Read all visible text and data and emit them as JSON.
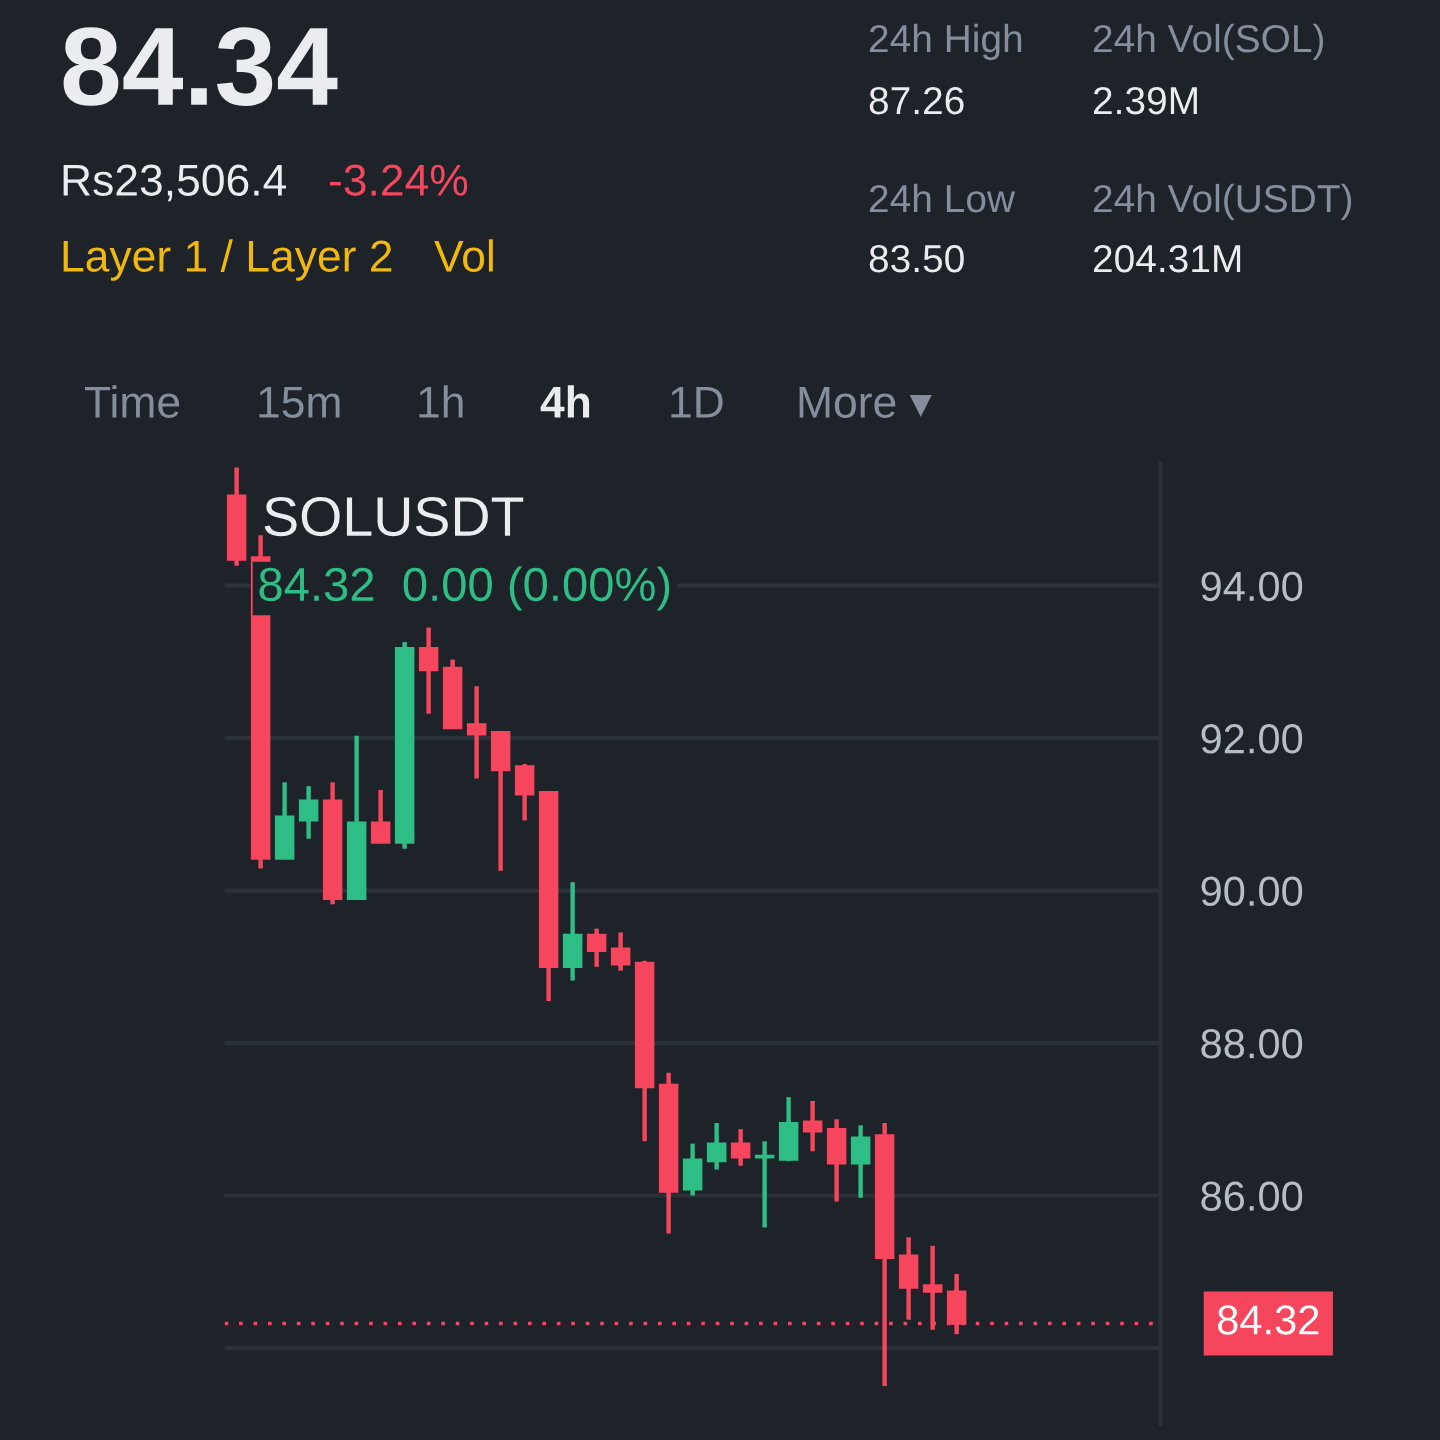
{
  "chart_data": {
    "type": "candlestick",
    "title": "SOLUSDT",
    "subtitle": "84.32  0.00 (0.00%)",
    "categories": [
      null,
      null,
      null,
      null,
      null,
      null,
      null,
      null,
      null,
      null,
      null,
      null,
      null,
      null,
      null,
      null,
      null,
      null,
      null,
      null,
      null,
      null,
      null,
      null,
      null,
      null,
      null,
      null,
      null,
      null,
      null,
      null,
      null,
      null,
      null,
      null,
      null,
      null,
      null
    ],
    "ohlc": [
      [
        95.18,
        95.55,
        94.26,
        94.34
      ],
      [
        94.37,
        94.66,
        90.29,
        90.42
      ],
      [
        90.42,
        91.42,
        90.42,
        90.97
      ],
      [
        90.92,
        91.37,
        90.68,
        91.18
      ],
      [
        91.18,
        91.42,
        89.82,
        89.89
      ],
      [
        89.89,
        92.03,
        89.89,
        90.89
      ],
      [
        90.89,
        91.32,
        90.63,
        90.63
      ],
      [
        90.63,
        93.26,
        90.55,
        93.18
      ],
      [
        93.18,
        93.45,
        92.32,
        92.89
      ],
      [
        92.92,
        93.03,
        92.13,
        92.13
      ],
      [
        92.18,
        92.68,
        91.47,
        92.05
      ],
      [
        92.08,
        92.08,
        90.26,
        91.58
      ],
      [
        91.63,
        91.66,
        90.92,
        91.26
      ],
      [
        91.29,
        91.29,
        88.55,
        89.0
      ],
      [
        89.0,
        90.11,
        88.82,
        89.42
      ],
      [
        89.42,
        89.5,
        89.0,
        89.21
      ],
      [
        89.24,
        89.45,
        88.95,
        89.03
      ],
      [
        89.05,
        89.08,
        86.71,
        87.42
      ],
      [
        87.45,
        87.61,
        85.5,
        86.05
      ],
      [
        86.08,
        86.68,
        86.0,
        86.47
      ],
      [
        86.45,
        86.95,
        86.34,
        86.68
      ],
      [
        86.68,
        86.87,
        86.39,
        86.5
      ],
      [
        86.5,
        86.71,
        85.58,
        86.52
      ],
      [
        86.47,
        87.29,
        86.45,
        86.95
      ],
      [
        86.97,
        87.24,
        86.58,
        86.84
      ],
      [
        86.87,
        87.0,
        85.92,
        86.42
      ],
      [
        86.42,
        86.92,
        85.97,
        86.76
      ],
      [
        86.79,
        86.95,
        83.5,
        85.18
      ],
      [
        85.21,
        85.45,
        84.37,
        84.79
      ],
      [
        84.82,
        85.34,
        84.24,
        84.74
      ],
      [
        84.74,
        84.97,
        84.18,
        84.32
      ],
      null,
      null,
      null,
      null,
      null,
      null,
      null,
      null
    ],
    "colors": [
      "#f6465d",
      "#f6465d",
      "#2ebd85",
      "#2ebd85",
      "#f6465d",
      "#2ebd85",
      "#f6465d",
      "#2ebd85",
      "#f6465d",
      "#f6465d",
      "#f6465d",
      "#f6465d",
      "#f6465d",
      "#f6465d",
      "#2ebd85",
      "#f6465d",
      "#f6465d",
      "#f6465d",
      "#f6465d",
      "#2ebd85",
      "#2ebd85",
      "#f6465d",
      "#2ebd85",
      "#2ebd85",
      "#f6465d",
      "#f6465d",
      "#2ebd85",
      "#f6465d",
      "#f6465d",
      "#f6465d",
      "#f6465d",
      null,
      null,
      null,
      null,
      null,
      null,
      null,
      null
    ],
    "ylim": [
      83.0,
      95.6
    ],
    "yticks": [
      {
        "value": 84,
        "label": null
      },
      {
        "value": 86,
        "label": "86.00"
      },
      {
        "value": 88,
        "label": "88.00"
      },
      {
        "value": 90,
        "label": "90.00"
      },
      {
        "value": 92,
        "label": "92.00"
      },
      {
        "value": 94,
        "label": "94.00"
      }
    ],
    "grid": "y",
    "ref_lines": [
      {
        "axis": "y",
        "value": 84.32,
        "label": "84.32",
        "color": "#f6465d",
        "line_style": "dotted"
      }
    ],
    "annotations": [
      "84.34",
      "Rs23,506.4",
      "-3.24%",
      "Layer 1 / Layer 2",
      "Vol",
      "24h High",
      "87.26",
      "24h Vol(SOL)",
      "2.39M",
      "24h Low",
      "83.50",
      "24h Vol(USDT)",
      "204.31M",
      "Time",
      "15m",
      "1h",
      "4h",
      "1D",
      "More ▾"
    ]
  }
}
